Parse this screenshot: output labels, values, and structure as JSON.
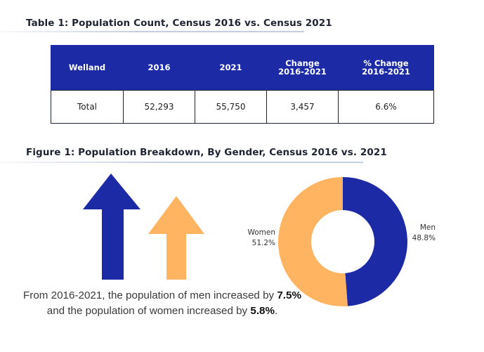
{
  "table_title": "Table 1: Population Count, Census 2016 vs. Census 2021",
  "table": {
    "headers": [
      {
        "line1": "Welland",
        "line2": ""
      },
      {
        "line1": "2016",
        "line2": ""
      },
      {
        "line1": "2021",
        "line2": ""
      },
      {
        "line1": "Change",
        "line2": "2016-2021"
      },
      {
        "line1": "% Change",
        "line2": "2016-2021"
      }
    ],
    "row": [
      "Total",
      "52,293",
      "55,750",
      "3,457",
      "6.6%"
    ]
  },
  "figure_title": "Figure 1: Population Breakdown, By Gender, Census 2016 vs. 2021",
  "arrows": {
    "men": {
      "color": "#1c2aa6",
      "icon": "up-arrow-icon"
    },
    "women": {
      "color": "#ffb462",
      "icon": "up-arrow-icon"
    }
  },
  "caption": {
    "part1": "From 2016-2021, the population of men increased by ",
    "men_pct": "7.5%",
    "part2": " and the population of women increased by ",
    "women_pct": "5.8%",
    "part3": "."
  },
  "chart_data": {
    "type": "pie",
    "title": "",
    "categories": [
      "Men",
      "Women"
    ],
    "values": [
      48.8,
      51.2
    ],
    "value_labels": [
      "48.8%",
      "51.2%"
    ],
    "colors": [
      "#1c2aa6",
      "#ffb462"
    ],
    "donut": true
  }
}
